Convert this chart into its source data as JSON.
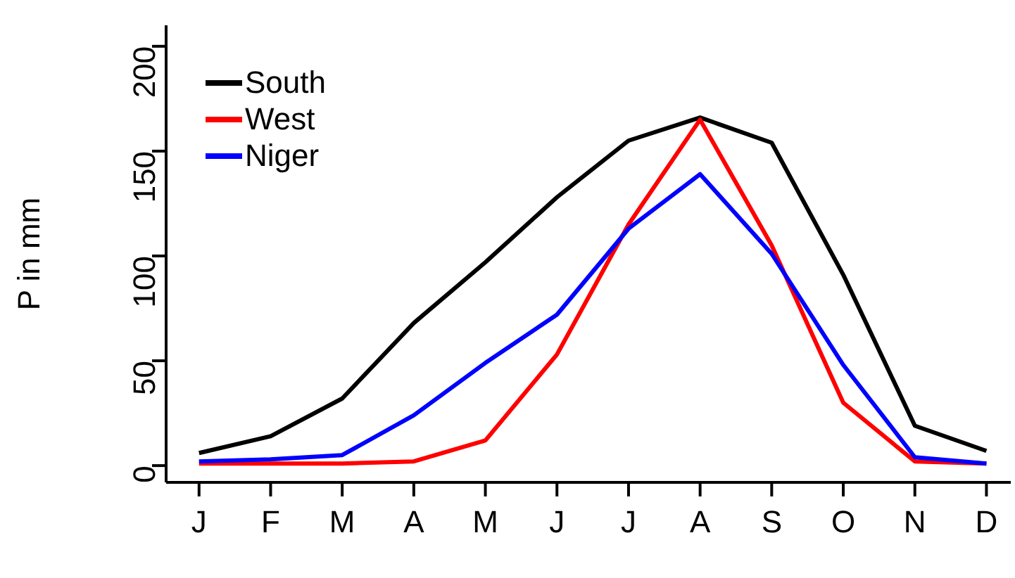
{
  "chart_data": {
    "type": "line",
    "ylabel": "P in mm",
    "categories": [
      "J",
      "F",
      "M",
      "A",
      "M",
      "J",
      "J",
      "A",
      "S",
      "O",
      "N",
      "D"
    ],
    "series": [
      {
        "name": "South",
        "color": "#000000",
        "values": [
          6,
          14,
          32,
          68,
          97,
          128,
          155,
          166,
          154,
          91,
          19,
          7
        ]
      },
      {
        "name": "West",
        "color": "#ff0000",
        "values": [
          1,
          1,
          1,
          2,
          12,
          53,
          115,
          165,
          105,
          30,
          2,
          1
        ]
      },
      {
        "name": "Niger",
        "color": "#0000ff",
        "values": [
          2,
          3,
          5,
          24,
          49,
          72,
          113,
          139,
          101,
          48,
          4,
          1
        ]
      }
    ],
    "ylim": [
      -8,
      210
    ],
    "yticks": [
      0,
      50,
      100,
      150,
      200
    ],
    "grid": false,
    "legend": "top left",
    "marker": "none",
    "line_style": "solid"
  }
}
